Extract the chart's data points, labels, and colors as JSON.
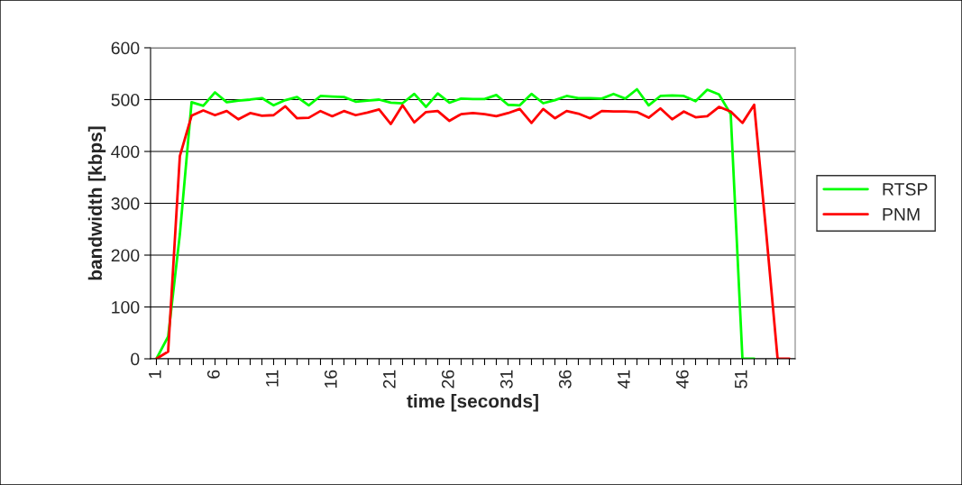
{
  "chart_data": {
    "type": "line",
    "xlabel": "time [seconds]",
    "ylabel": "bandwidth [kbps]",
    "categories": [
      "1",
      null,
      null,
      null,
      null,
      "6",
      null,
      null,
      null,
      null,
      "11",
      null,
      null,
      null,
      null,
      "16",
      null,
      null,
      null,
      null,
      "21",
      null,
      null,
      null,
      null,
      "26",
      null,
      null,
      null,
      null,
      "31",
      null,
      null,
      null,
      null,
      "36",
      null,
      null,
      null,
      null,
      "41",
      null,
      null,
      null,
      null,
      "46",
      null,
      null,
      null,
      null,
      "51",
      null,
      null,
      null,
      null
    ],
    "series": [
      {
        "name": "RTSP",
        "color": "#00ff00",
        "values": [
          0,
          43,
          240,
          495,
          488,
          514,
          495,
          498,
          500,
          503,
          489,
          499,
          505,
          489,
          507,
          506,
          505,
          496,
          498,
          500,
          494,
          493,
          511,
          486,
          512,
          494,
          502,
          501,
          501,
          509,
          490,
          489,
          511,
          493,
          499,
          507,
          503,
          503,
          502,
          511,
          502,
          520,
          489,
          507,
          508,
          507,
          497,
          519,
          510,
          472,
          0,
          0,
          null,
          null,
          null
        ]
      },
      {
        "name": "PNM",
        "color": "#ff0000",
        "values": [
          0,
          14,
          391,
          469,
          479,
          470,
          478,
          462,
          474,
          469,
          470,
          487,
          464,
          465,
          478,
          468,
          478,
          470,
          475,
          481,
          453,
          489,
          456,
          476,
          478,
          459,
          472,
          474,
          472,
          468,
          474,
          482,
          455,
          482,
          464,
          478,
          473,
          464,
          478,
          477,
          477,
          476,
          465,
          483,
          462,
          477,
          466,
          468,
          486,
          477,
          455,
          490,
          250,
          0,
          0
        ]
      }
    ],
    "ylim": [
      0,
      600
    ],
    "yticks": [
      0,
      100,
      200,
      300,
      400,
      500,
      600
    ],
    "grid": "y",
    "legend": "right"
  }
}
